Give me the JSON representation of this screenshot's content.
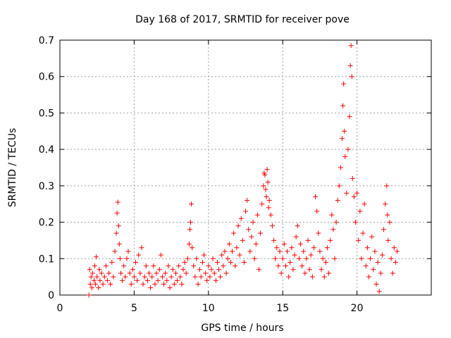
{
  "chart_data": {
    "type": "scatter",
    "title": "Day 168 of 2017, SRMTID for receiver pove",
    "xlabel": "GPS time / hours",
    "ylabel": "SRMTID / TECUs",
    "xlim": [
      0,
      25
    ],
    "ylim": [
      0,
      0.7
    ],
    "xticks": [
      0,
      5,
      10,
      15,
      20
    ],
    "yticks": [
      0,
      0.1,
      0.2,
      0.3,
      0.4,
      0.5,
      0.6,
      0.7
    ],
    "xtick_labels": [
      "0",
      "5",
      "10",
      "15",
      "20"
    ],
    "ytick_labels": [
      "0",
      "0.1",
      "0.2",
      "0.3",
      "0.4",
      "0.5",
      "0.6",
      "0.7"
    ],
    "grid": true,
    "marker": "+",
    "color": "#ff0000",
    "series": [
      {
        "name": "SRMTID",
        "points": [
          [
            1.95,
            0.0
          ],
          [
            2.0,
            0.07
          ],
          [
            2.05,
            0.03
          ],
          [
            2.1,
            0.05
          ],
          [
            2.15,
            0.02
          ],
          [
            2.2,
            0.06
          ],
          [
            2.3,
            0.04
          ],
          [
            2.35,
            0.08
          ],
          [
            2.4,
            0.03
          ],
          [
            2.45,
            0.105
          ],
          [
            2.5,
            0.05
          ],
          [
            2.6,
            0.02
          ],
          [
            2.65,
            0.07
          ],
          [
            2.7,
            0.04
          ],
          [
            2.8,
            0.06
          ],
          [
            2.9,
            0.03
          ],
          [
            3.0,
            0.05
          ],
          [
            3.1,
            0.08
          ],
          [
            3.2,
            0.04
          ],
          [
            3.3,
            0.06
          ],
          [
            3.4,
            0.03
          ],
          [
            3.5,
            0.09
          ],
          [
            3.6,
            0.05
          ],
          [
            3.7,
            0.12
          ],
          [
            3.8,
            0.17
          ],
          [
            3.85,
            0.225
          ],
          [
            3.9,
            0.255
          ],
          [
            3.95,
            0.19
          ],
          [
            4.0,
            0.14
          ],
          [
            4.05,
            0.1
          ],
          [
            4.1,
            0.06
          ],
          [
            4.2,
            0.04
          ],
          [
            4.3,
            0.08
          ],
          [
            4.4,
            0.05
          ],
          [
            4.5,
            0.1
          ],
          [
            4.6,
            0.12
          ],
          [
            4.7,
            0.06
          ],
          [
            4.8,
            0.03
          ],
          [
            4.9,
            0.07
          ],
          [
            5.0,
            0.05
          ],
          [
            5.1,
            0.09
          ],
          [
            5.2,
            0.04
          ],
          [
            5.3,
            0.11
          ],
          [
            5.4,
            0.06
          ],
          [
            5.5,
            0.13
          ],
          [
            5.6,
            0.03
          ],
          [
            5.7,
            0.05
          ],
          [
            5.8,
            0.08
          ],
          [
            5.9,
            0.04
          ],
          [
            6.0,
            0.06
          ],
          [
            6.1,
            0.02
          ],
          [
            6.2,
            0.05
          ],
          [
            6.3,
            0.08
          ],
          [
            6.4,
            0.03
          ],
          [
            6.5,
            0.06
          ],
          [
            6.6,
            0.04
          ],
          [
            6.7,
            0.07
          ],
          [
            6.8,
            0.11
          ],
          [
            6.9,
            0.05
          ],
          [
            7.0,
            0.03
          ],
          [
            7.1,
            0.06
          ],
          [
            7.2,
            0.04
          ],
          [
            7.3,
            0.08
          ],
          [
            7.4,
            0.02
          ],
          [
            7.5,
            0.05
          ],
          [
            7.6,
            0.07
          ],
          [
            7.7,
            0.03
          ],
          [
            7.8,
            0.06
          ],
          [
            7.9,
            0.04
          ],
          [
            8.0,
            0.08
          ],
          [
            8.1,
            0.05
          ],
          [
            8.2,
            0.03
          ],
          [
            8.3,
            0.07
          ],
          [
            8.4,
            0.09
          ],
          [
            8.5,
            0.06
          ],
          [
            8.6,
            0.1
          ],
          [
            8.7,
            0.14
          ],
          [
            8.75,
            0.18
          ],
          [
            8.8,
            0.2
          ],
          [
            8.85,
            0.25
          ],
          [
            8.9,
            0.13
          ],
          [
            9.0,
            0.08
          ],
          [
            9.1,
            0.05
          ],
          [
            9.2,
            0.1
          ],
          [
            9.3,
            0.03
          ],
          [
            9.4,
            0.07
          ],
          [
            9.5,
            0.05
          ],
          [
            9.6,
            0.09
          ],
          [
            9.7,
            0.11
          ],
          [
            9.8,
            0.06
          ],
          [
            9.9,
            0.04
          ],
          [
            10.0,
            0.08
          ],
          [
            10.1,
            0.05
          ],
          [
            10.2,
            0.07
          ],
          [
            10.3,
            0.1
          ],
          [
            10.4,
            0.06
          ],
          [
            10.5,
            0.04
          ],
          [
            10.6,
            0.09
          ],
          [
            10.7,
            0.07
          ],
          [
            10.8,
            0.05
          ],
          [
            10.9,
            0.11
          ],
          [
            11.0,
            0.08
          ],
          [
            11.1,
            0.12
          ],
          [
            11.2,
            0.06
          ],
          [
            11.3,
            0.1
          ],
          [
            11.4,
            0.14
          ],
          [
            11.5,
            0.09
          ],
          [
            11.6,
            0.12
          ],
          [
            11.7,
            0.17
          ],
          [
            11.8,
            0.08
          ],
          [
            11.9,
            0.13
          ],
          [
            12.0,
            0.19
          ],
          [
            12.1,
            0.11
          ],
          [
            12.2,
            0.21
          ],
          [
            12.3,
            0.15
          ],
          [
            12.4,
            0.09
          ],
          [
            12.5,
            0.23
          ],
          [
            12.6,
            0.26
          ],
          [
            12.7,
            0.18
          ],
          [
            12.8,
            0.12
          ],
          [
            12.9,
            0.16
          ],
          [
            13.0,
            0.2
          ],
          [
            13.1,
            0.1
          ],
          [
            13.2,
            0.14
          ],
          [
            13.3,
            0.22
          ],
          [
            13.4,
            0.07
          ],
          [
            13.5,
            0.17
          ],
          [
            13.6,
            0.25
          ],
          [
            13.7,
            0.3
          ],
          [
            13.75,
            0.335
          ],
          [
            13.8,
            0.33
          ],
          [
            13.85,
            0.29
          ],
          [
            13.9,
            0.27
          ],
          [
            13.95,
            0.345
          ],
          [
            14.0,
            0.31
          ],
          [
            14.05,
            0.24
          ],
          [
            14.1,
            0.26
          ],
          [
            14.2,
            0.22
          ],
          [
            14.3,
            0.19
          ],
          [
            14.4,
            0.15
          ],
          [
            14.5,
            0.1
          ],
          [
            14.6,
            0.13
          ],
          [
            14.7,
            0.08
          ],
          [
            14.8,
            0.12
          ],
          [
            14.9,
            0.06
          ],
          [
            15.0,
            0.1
          ],
          [
            15.1,
            0.14
          ],
          [
            15.2,
            0.08
          ],
          [
            15.3,
            0.12
          ],
          [
            15.4,
            0.05
          ],
          [
            15.5,
            0.09
          ],
          [
            15.6,
            0.13
          ],
          [
            15.7,
            0.07
          ],
          [
            15.8,
            0.11
          ],
          [
            15.9,
            0.16
          ],
          [
            16.0,
            0.19
          ],
          [
            16.1,
            0.1
          ],
          [
            16.2,
            0.14
          ],
          [
            16.3,
            0.08
          ],
          [
            16.4,
            0.12
          ],
          [
            16.5,
            0.06
          ],
          [
            16.6,
            0.1
          ],
          [
            16.7,
            0.15
          ],
          [
            16.8,
            0.07
          ],
          [
            16.9,
            0.11
          ],
          [
            17.0,
            0.05
          ],
          [
            17.1,
            0.13
          ],
          [
            17.2,
            0.27
          ],
          [
            17.3,
            0.23
          ],
          [
            17.4,
            0.17
          ],
          [
            17.5,
            0.12
          ],
          [
            17.6,
            0.07
          ],
          [
            17.7,
            0.1
          ],
          [
            17.8,
            0.05
          ],
          [
            17.9,
            0.09
          ],
          [
            18.0,
            0.13
          ],
          [
            18.1,
            0.06
          ],
          [
            18.2,
            0.15
          ],
          [
            18.3,
            0.22
          ],
          [
            18.4,
            0.18
          ],
          [
            18.5,
            0.1
          ],
          [
            18.6,
            0.2
          ],
          [
            18.7,
            0.26
          ],
          [
            18.8,
            0.3
          ],
          [
            18.9,
            0.35
          ],
          [
            19.0,
            0.43
          ],
          [
            19.05,
            0.52
          ],
          [
            19.1,
            0.58
          ],
          [
            19.15,
            0.45
          ],
          [
            19.2,
            0.38
          ],
          [
            19.3,
            0.28
          ],
          [
            19.4,
            0.4
          ],
          [
            19.5,
            0.49
          ],
          [
            19.55,
            0.63
          ],
          [
            19.6,
            0.685
          ],
          [
            19.65,
            0.6
          ],
          [
            19.7,
            0.32
          ],
          [
            19.8,
            0.27
          ],
          [
            19.9,
            0.2
          ],
          [
            20.0,
            0.28
          ],
          [
            20.1,
            0.15
          ],
          [
            20.2,
            0.23
          ],
          [
            20.3,
            0.1
          ],
          [
            20.4,
            0.17
          ],
          [
            20.5,
            0.25
          ],
          [
            20.6,
            0.08
          ],
          [
            20.7,
            0.13
          ],
          [
            20.8,
            0.05
          ],
          [
            20.9,
            0.1
          ],
          [
            21.0,
            0.16
          ],
          [
            21.1,
            0.07
          ],
          [
            21.2,
            0.12
          ],
          [
            21.3,
            0.03
          ],
          [
            21.4,
            0.09
          ],
          [
            21.5,
            0.01
          ],
          [
            21.6,
            0.06
          ],
          [
            21.7,
            0.11
          ],
          [
            21.8,
            0.18
          ],
          [
            21.9,
            0.25
          ],
          [
            22.0,
            0.3
          ],
          [
            22.05,
            0.22
          ],
          [
            22.1,
            0.15
          ],
          [
            22.2,
            0.2
          ],
          [
            22.3,
            0.1
          ],
          [
            22.4,
            0.06
          ],
          [
            22.5,
            0.13
          ],
          [
            22.6,
            0.09
          ],
          [
            22.7,
            0.12
          ]
        ]
      }
    ]
  }
}
